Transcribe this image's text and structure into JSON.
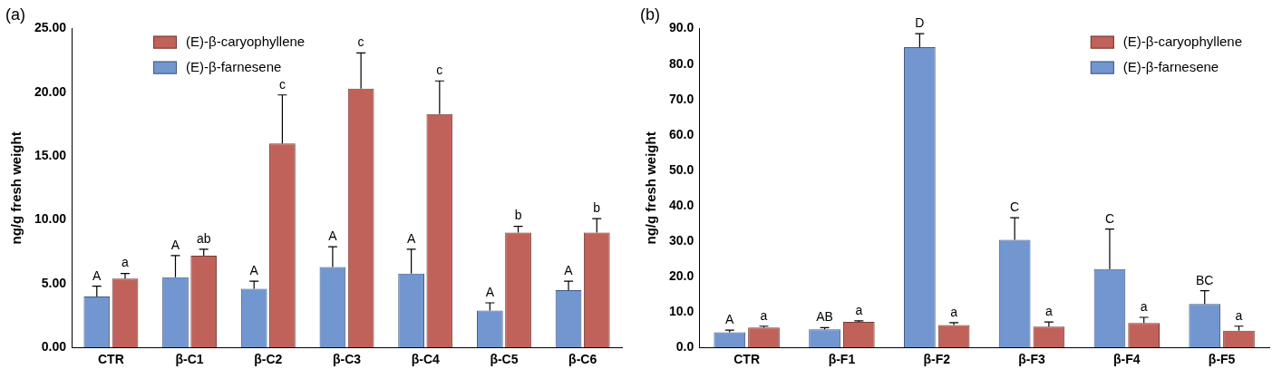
{
  "chart_data": [
    {
      "type": "bar",
      "title": "(a)",
      "y_label": "ng/g fresh weight",
      "categories": [
        "CTR",
        "β-C1",
        "β-C2",
        "β-C3",
        "β-C4",
        "β-C5",
        "β-C6"
      ],
      "series": [
        {
          "name": "(E)-β-farnesene",
          "color": "#7196d0",
          "values": [
            4.0,
            5.5,
            4.6,
            6.3,
            5.8,
            2.9,
            4.5
          ],
          "errors": [
            0.8,
            1.7,
            0.6,
            1.6,
            1.9,
            0.6,
            0.7
          ],
          "letters": [
            "A",
            "A",
            "A",
            "A",
            "A",
            "A",
            "A"
          ]
        },
        {
          "name": "(E)-β-caryophyllene",
          "color": "#c0625a",
          "values": [
            5.4,
            7.2,
            16.0,
            20.3,
            18.3,
            9.0,
            9.0
          ],
          "errors": [
            0.4,
            0.5,
            3.8,
            2.8,
            2.6,
            0.5,
            1.1
          ],
          "letters": [
            "a",
            "ab",
            "c",
            "c",
            "c",
            "b",
            "b"
          ]
        }
      ],
      "ylim": [
        0,
        25
      ],
      "yticks": [
        {
          "value": 0,
          "label": "0.00"
        },
        {
          "value": 5,
          "label": "5.00"
        },
        {
          "value": 10,
          "label": "10.00"
        },
        {
          "value": 15,
          "label": "15.00"
        },
        {
          "value": 20,
          "label": "20.00"
        },
        {
          "value": 25,
          "label": "25.00"
        }
      ],
      "grid": false,
      "legend": "upper left"
    },
    {
      "type": "bar",
      "title": "(b)",
      "y_label": "ng/g fresh weight",
      "categories": [
        "CTR",
        "β-F1",
        "β-F2",
        "β-F3",
        "β-F4",
        "β-F5"
      ],
      "series": [
        {
          "name": "(E)-β-farnesene",
          "color": "#7196d0",
          "values": [
            4.3,
            5.1,
            84.8,
            30.4,
            22.1,
            12.3
          ],
          "errors": [
            0.6,
            0.5,
            3.8,
            6.2,
            11.3,
            3.7
          ],
          "letters": [
            "A",
            "AB",
            "D",
            "C",
            "C",
            "BC"
          ]
        },
        {
          "name": "(E)-β-caryophyllene",
          "color": "#c0625a",
          "values": [
            5.6,
            7.2,
            6.3,
            5.9,
            6.9,
            4.7
          ],
          "errors": [
            0.4,
            0.3,
            0.7,
            1.3,
            1.6,
            1.3
          ],
          "letters": [
            "a",
            "a",
            "a",
            "a",
            "a",
            "a"
          ]
        }
      ],
      "ylim": [
        0,
        90
      ],
      "yticks": [
        {
          "value": 0,
          "label": "0.0"
        },
        {
          "value": 10,
          "label": "10.0"
        },
        {
          "value": 20,
          "label": "20.0"
        },
        {
          "value": 30,
          "label": "30.0"
        },
        {
          "value": 40,
          "label": "40.0"
        },
        {
          "value": 50,
          "label": "50.0"
        },
        {
          "value": 60,
          "label": "60.0"
        },
        {
          "value": 70,
          "label": "70.0"
        },
        {
          "value": 80,
          "label": "80.0"
        },
        {
          "value": 90,
          "label": "90.0"
        }
      ],
      "grid": false,
      "legend": "upper right"
    }
  ]
}
